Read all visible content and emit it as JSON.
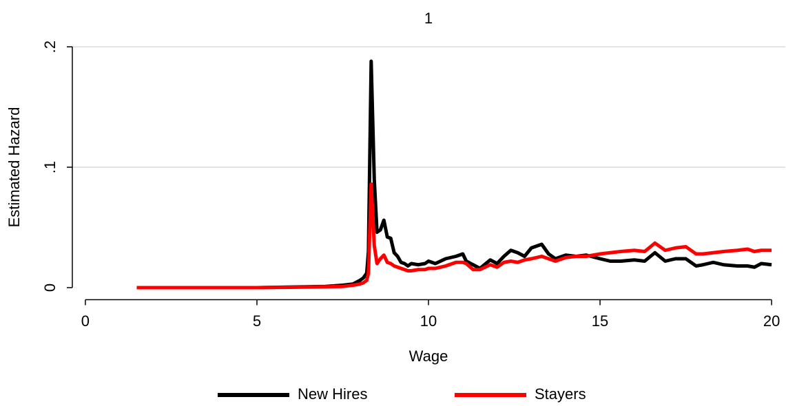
{
  "chart_data": {
    "type": "line",
    "title": "1",
    "x_label": "Wage",
    "y_label": "Estimated Hazard",
    "x": [
      1.5,
      3,
      5,
      6,
      7,
      7.5,
      7.8,
      8.0,
      8.1,
      8.2,
      8.25,
      8.33,
      8.42,
      8.5,
      8.6,
      8.7,
      8.8,
      8.9,
      9.0,
      9.1,
      9.2,
      9.3,
      9.4,
      9.5,
      9.7,
      9.9,
      10.0,
      10.2,
      10.5,
      10.8,
      11.0,
      11.1,
      11.3,
      11.5,
      11.8,
      12.0,
      12.2,
      12.4,
      12.6,
      12.8,
      13.0,
      13.3,
      13.5,
      13.7,
      14.0,
      14.3,
      14.6,
      15.0,
      15.3,
      15.6,
      16.0,
      16.3,
      16.6,
      16.9,
      17.2,
      17.5,
      17.8,
      18.0,
      18.3,
      18.6,
      19.0,
      19.3,
      19.5,
      19.7,
      20.0
    ],
    "series": [
      {
        "name": "New Hires",
        "color": "#000000",
        "values": [
          0,
          0,
          0,
          0.0005,
          0.001,
          0.002,
          0.003,
          0.006,
          0.008,
          0.012,
          0.03,
          0.188,
          0.09,
          0.046,
          0.048,
          0.056,
          0.042,
          0.041,
          0.029,
          0.026,
          0.021,
          0.02,
          0.018,
          0.02,
          0.019,
          0.02,
          0.022,
          0.02,
          0.024,
          0.026,
          0.028,
          0.022,
          0.019,
          0.016,
          0.023,
          0.02,
          0.026,
          0.031,
          0.029,
          0.026,
          0.033,
          0.036,
          0.028,
          0.024,
          0.027,
          0.026,
          0.027,
          0.024,
          0.022,
          0.022,
          0.023,
          0.022,
          0.029,
          0.022,
          0.024,
          0.024,
          0.018,
          0.019,
          0.021,
          0.019,
          0.018,
          0.018,
          0.017,
          0.02,
          0.019
        ]
      },
      {
        "name": "Stayers",
        "color": "#ff0000",
        "values": [
          0,
          0,
          0,
          0.0003,
          0.0007,
          0.001,
          0.002,
          0.003,
          0.004,
          0.006,
          0.012,
          0.086,
          0.035,
          0.02,
          0.024,
          0.027,
          0.021,
          0.02,
          0.018,
          0.017,
          0.016,
          0.015,
          0.014,
          0.014,
          0.015,
          0.015,
          0.016,
          0.016,
          0.018,
          0.021,
          0.021,
          0.02,
          0.015,
          0.015,
          0.019,
          0.017,
          0.021,
          0.022,
          0.021,
          0.023,
          0.024,
          0.026,
          0.024,
          0.022,
          0.025,
          0.026,
          0.026,
          0.028,
          0.029,
          0.03,
          0.031,
          0.03,
          0.037,
          0.031,
          0.033,
          0.034,
          0.028,
          0.028,
          0.029,
          0.03,
          0.031,
          0.032,
          0.03,
          0.031,
          0.031
        ]
      }
    ],
    "xlim": [
      -0.38,
      20.4
    ],
    "xticks": [
      0,
      5,
      10,
      15,
      20
    ],
    "ylim": [
      -0.01,
      0.21
    ],
    "yticks": [
      0,
      {
        "value": 0.1,
        "label": ".1"
      },
      {
        "value": 0.2,
        "label": ".2"
      }
    ],
    "grid": true
  }
}
